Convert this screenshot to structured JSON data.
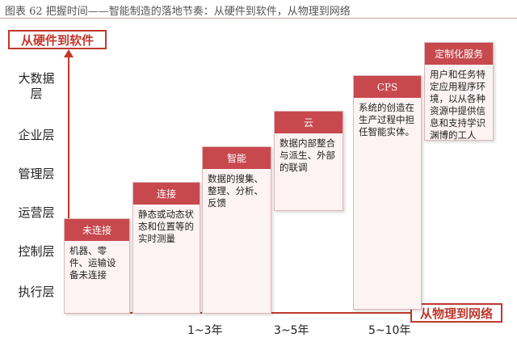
{
  "caption": "图表 62   把握时间——智能制造的落地节奏：从硬件到软件，从物理到网络",
  "y_axis_label": "从硬件到软件",
  "x_axis_label": "从物理到网络",
  "layers": [
    "大数据层",
    "企业层",
    "管理层",
    "运营层",
    "控制层",
    "执行层"
  ],
  "stages": [
    {
      "title": "未连接",
      "desc": "机器、零件、运输设备未连接"
    },
    {
      "title": "连接",
      "desc": "静态或动态状态和位置等的实时测量"
    },
    {
      "title": "智能",
      "desc": "数据的搜集、整理、分析、反馈"
    },
    {
      "title": "云",
      "desc": "数据内部整合与派生、外部的联调"
    },
    {
      "title": "CPS",
      "desc": "系统的创造在生产过程中担任智能实体。"
    },
    {
      "title": "定制化服务",
      "desc": "用户和任务特定应用程序环境，以从各种资源中提供信息和支持学识渊博的工人"
    }
  ],
  "timeline": [
    "1~3年",
    "3~5年",
    "5~10年"
  ]
}
